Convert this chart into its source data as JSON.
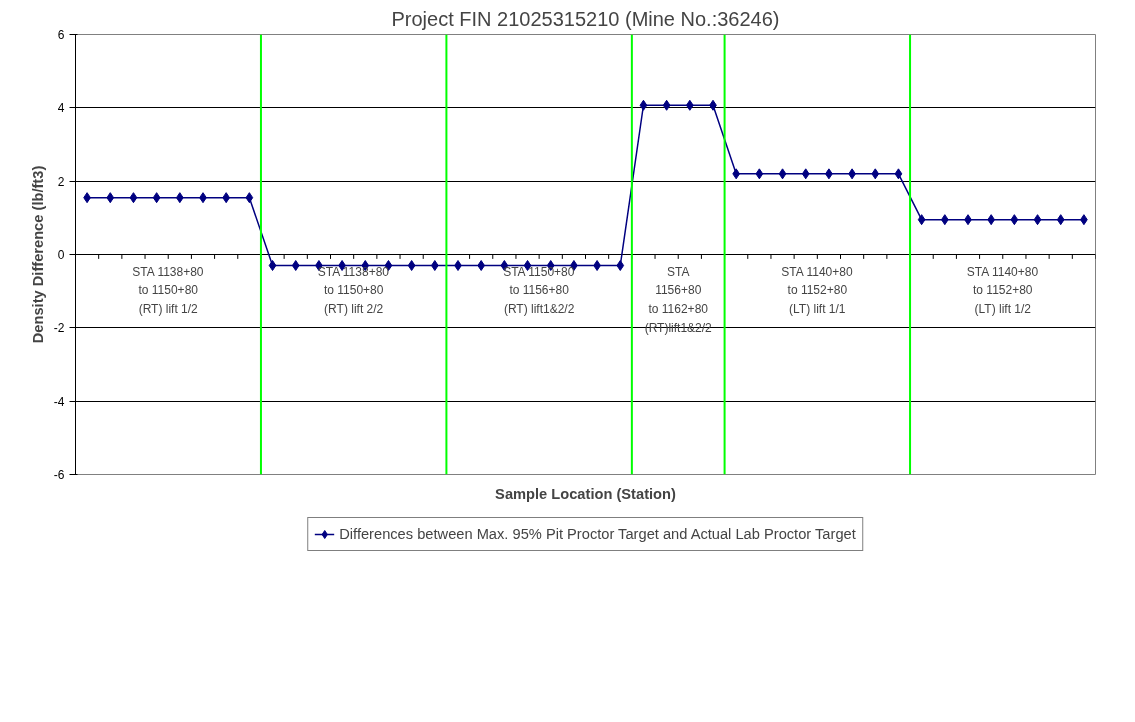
{
  "chart_data": {
    "type": "line",
    "title": "Project FIN 21025315210 (Mine No.:36246)",
    "xlabel": "Sample Location (Station)",
    "ylabel": "Density Difference (lb/ft3)",
    "categories": [
      null,
      null,
      null,
      null,
      null,
      null,
      null,
      null,
      null,
      null,
      null,
      null,
      null,
      null,
      null,
      null,
      null,
      null,
      null,
      null,
      null,
      null,
      null,
      null,
      null,
      null,
      null,
      null,
      null,
      null,
      null,
      null,
      null,
      null,
      null,
      null,
      null,
      null,
      null,
      null,
      null,
      null,
      null,
      null
    ],
    "series": [
      {
        "name": "Differences between Max. 95% Pit Proctor Target and Actual Lab Proctor Target",
        "color": "#000080",
        "values": [
          1.55,
          1.55,
          1.55,
          1.55,
          1.55,
          1.55,
          1.55,
          1.55,
          -0.3,
          -0.3,
          -0.3,
          -0.3,
          -0.3,
          -0.3,
          -0.3,
          -0.3,
          -0.3,
          -0.3,
          -0.3,
          -0.3,
          -0.3,
          -0.3,
          -0.3,
          -0.3,
          4.07,
          4.07,
          4.07,
          4.07,
          2.2,
          2.2,
          2.2,
          2.2,
          2.2,
          2.2,
          2.2,
          2.2,
          0.95,
          0.95,
          0.95,
          0.95,
          0.95,
          0.95,
          0.95,
          0.95
        ]
      }
    ],
    "ylim": [
      -6,
      6
    ],
    "yticks": [
      -6,
      -4,
      -2,
      0,
      2,
      4,
      6
    ],
    "grid": "y",
    "legend": "bottom",
    "marker": "diamond",
    "line_style": "solid",
    "annotations": [
      "STA 1138+80\nto 1150+80\n(RT) lift 1/2",
      "STA 1138+80\nto 1150+80\n(RT) lift 2/2",
      "STA 1150+80\nto 1156+80\n(RT) lift1&2/2",
      "STA\n1156+80\nto 1162+80\n(RT)lift1&2/2",
      "STA 1140+80\nto 1152+80\n(LT) lift 1/1",
      "STA 1140+80\nto 1152+80\n(LT) lift 1/2"
    ]
  }
}
